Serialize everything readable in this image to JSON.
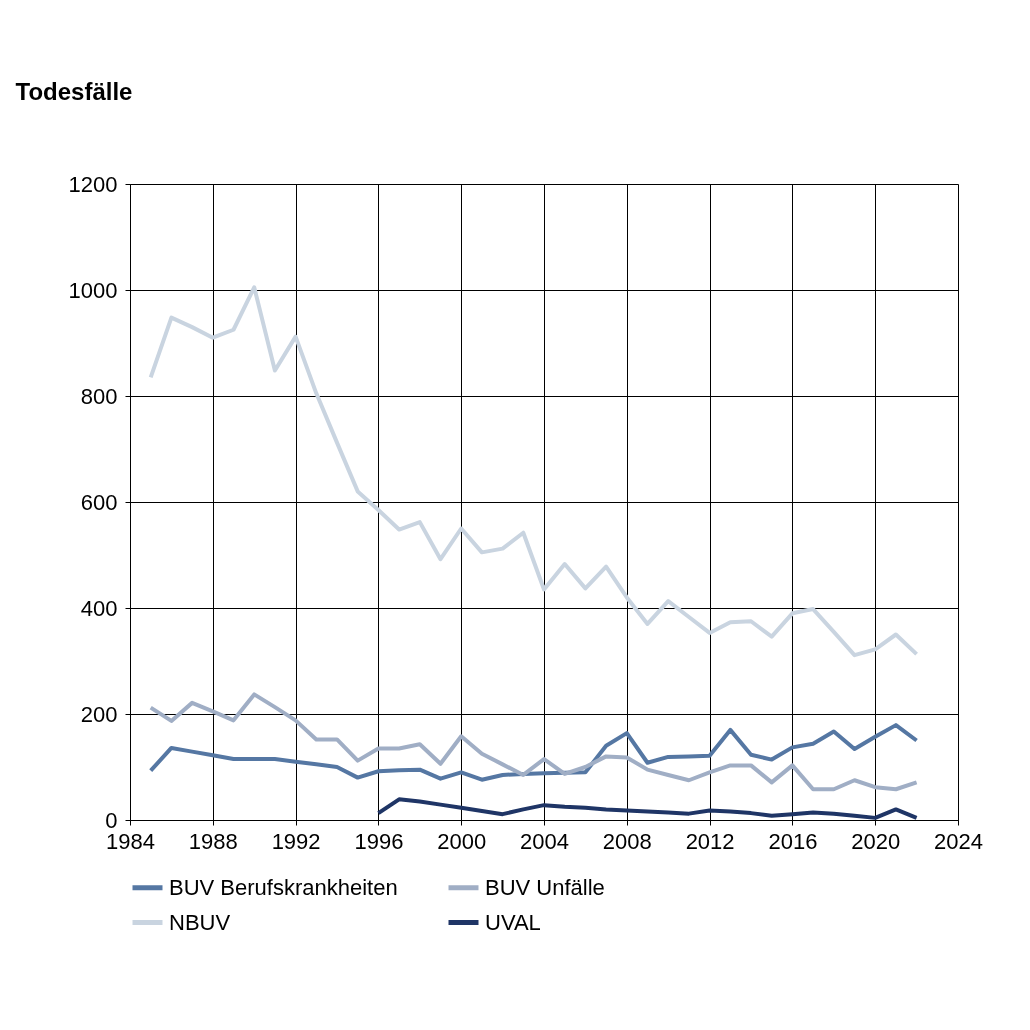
{
  "chart_data": {
    "type": "line",
    "ylabel": "Todesfälle",
    "xlim": [
      1984,
      2024
    ],
    "xticks": [
      1984,
      1988,
      1992,
      1996,
      2000,
      2004,
      2008,
      2012,
      2016,
      2020,
      2024
    ],
    "ylim": [
      0,
      1200
    ],
    "yticks": [
      0,
      200,
      400,
      600,
      800,
      1000,
      1200
    ],
    "grid": true,
    "legend": "bottom",
    "marker": "none",
    "line_style": "solid",
    "series": [
      {
        "name": "BUV Berufskrankheiten",
        "color": "#5577a3",
        "x": [
          1985,
          1986,
          1987,
          1988,
          1989,
          1990,
          1991,
          1992,
          1993,
          1994,
          1995,
          1996,
          1997,
          1998,
          1999,
          2000,
          2001,
          2002,
          2003,
          2004,
          2005,
          2006,
          2007,
          2008,
          2009,
          2010,
          2011,
          2012,
          2013,
          2014,
          2015,
          2016,
          2017,
          2018,
          2019,
          2020,
          2021,
          2022
        ],
        "values": [
          93,
          136,
          129,
          122,
          115,
          115,
          115,
          110,
          105,
          100,
          80,
          92,
          94,
          95,
          78,
          90,
          76,
          85,
          87,
          88,
          89,
          90,
          140,
          164,
          108,
          119,
          120,
          121,
          170,
          123,
          114,
          137,
          144,
          167,
          134,
          157,
          179,
          150
        ]
      },
      {
        "name": "BUV Unfälle",
        "color": "#a0aec5",
        "x": [
          1985,
          1986,
          1987,
          1988,
          1989,
          1990,
          1991,
          1992,
          1993,
          1994,
          1995,
          1996,
          1997,
          1998,
          1999,
          2000,
          2001,
          2002,
          2003,
          2004,
          2005,
          2006,
          2007,
          2008,
          2009,
          2010,
          2011,
          2012,
          2013,
          2014,
          2015,
          2016,
          2017,
          2018,
          2019,
          2020,
          2021,
          2022
        ],
        "values": [
          212,
          187,
          221,
          205,
          188,
          237,
          213,
          188,
          152,
          152,
          112,
          135,
          135,
          143,
          106,
          158,
          125,
          105,
          85,
          115,
          87,
          100,
          120,
          118,
          95,
          85,
          75,
          90,
          103,
          103,
          71,
          103,
          58,
          58,
          75,
          62,
          58,
          71
        ]
      },
      {
        "name": "NBUV",
        "color": "#c9d4e0",
        "x": [
          1985,
          1986,
          1987,
          1988,
          1989,
          1990,
          1991,
          1992,
          1993,
          1994,
          1995,
          1996,
          1997,
          1998,
          1999,
          2000,
          2001,
          2002,
          2003,
          2004,
          2005,
          2006,
          2007,
          2008,
          2009,
          2010,
          2011,
          2012,
          2013,
          2014,
          2015,
          2016,
          2017,
          2018,
          2019,
          2020,
          2021,
          2022
        ],
        "values": [
          835,
          948,
          930,
          910,
          925,
          1005,
          848,
          912,
          805,
          712,
          620,
          585,
          548,
          562,
          492,
          550,
          505,
          512,
          542,
          435,
          483,
          437,
          478,
          420,
          370,
          413,
          383,
          353,
          373,
          375,
          346,
          390,
          398,
          355,
          311,
          322,
          350,
          313
        ]
      },
      {
        "name": "UVAL",
        "color": "#1f3566",
        "x": [
          1996,
          1997,
          1998,
          1999,
          2000,
          2001,
          2002,
          2003,
          2004,
          2005,
          2006,
          2007,
          2008,
          2009,
          2010,
          2011,
          2012,
          2013,
          2014,
          2015,
          2016,
          2017,
          2018,
          2019,
          2020,
          2021,
          2022
        ],
        "values": [
          13,
          39,
          35,
          29,
          23,
          17,
          11,
          20,
          28,
          25,
          23,
          20,
          18,
          16,
          14,
          12,
          18,
          16,
          13,
          8,
          11,
          14,
          12,
          8,
          4,
          20,
          4
        ]
      }
    ]
  }
}
